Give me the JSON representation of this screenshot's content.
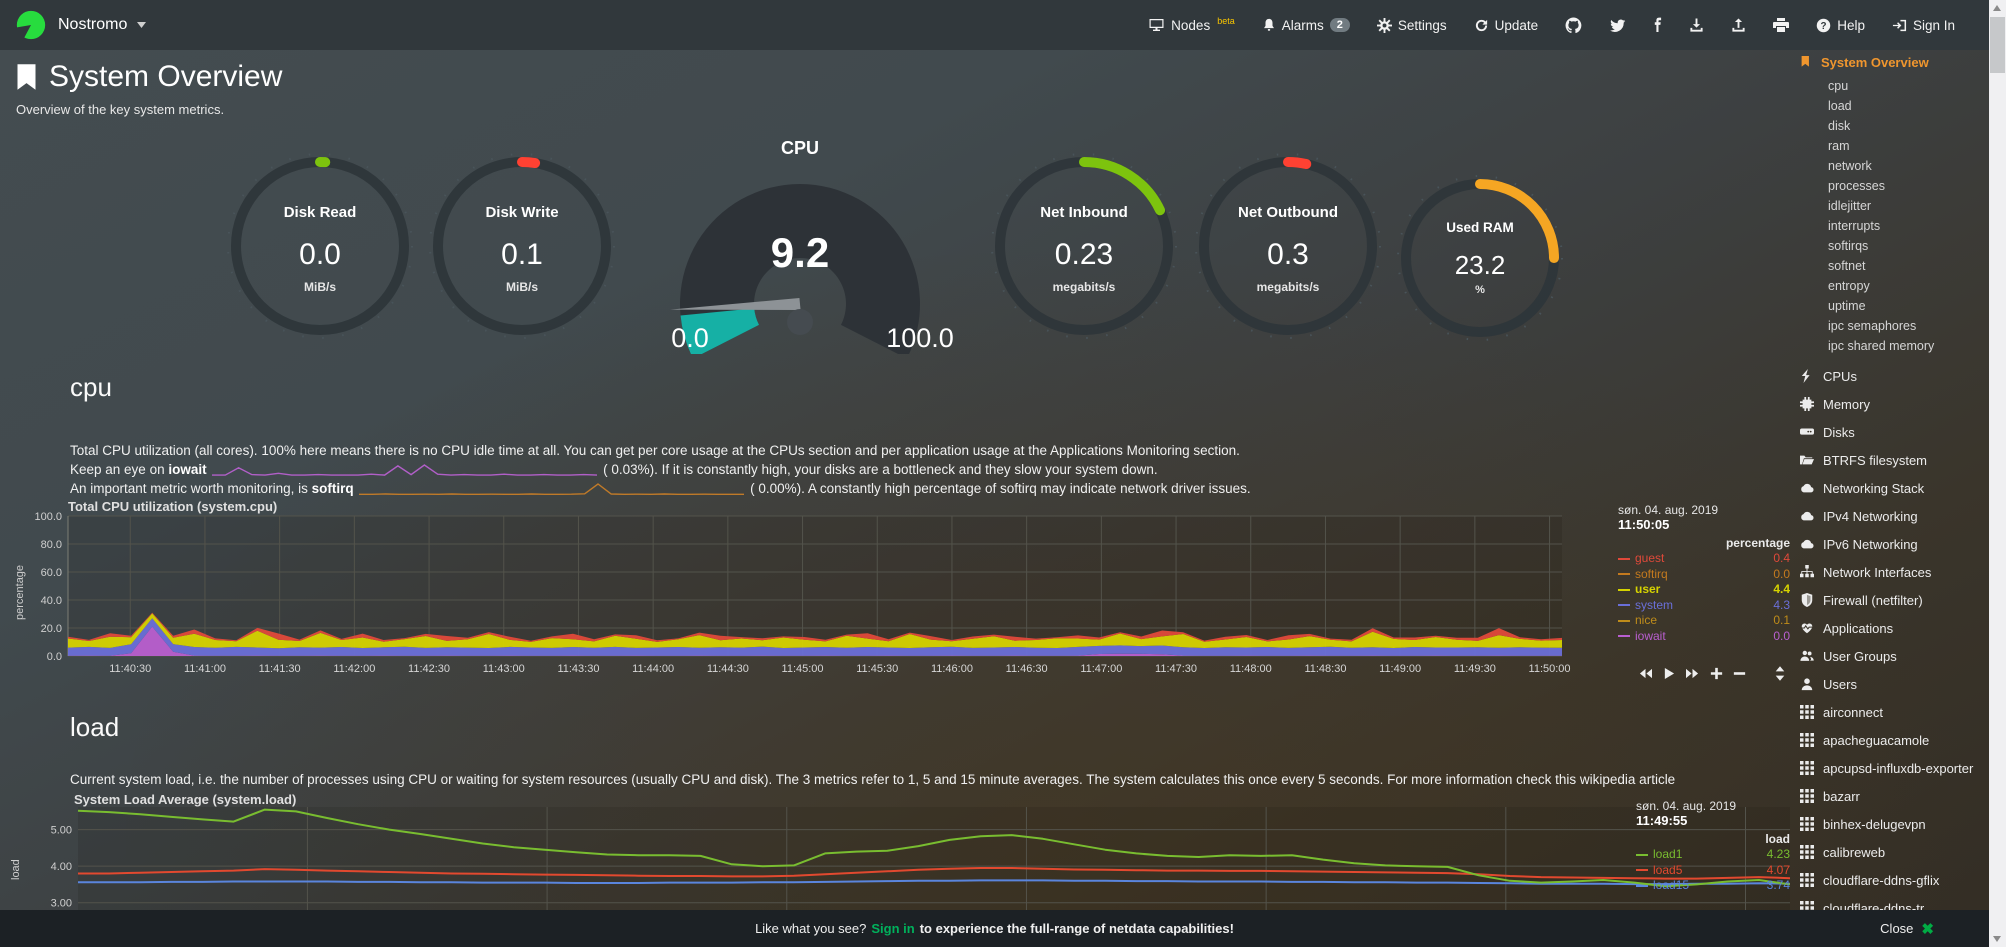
{
  "brand": {
    "name": "Nostromo"
  },
  "nav": {
    "nodes": {
      "label": "Nodes",
      "beta": "beta"
    },
    "alarms": {
      "label": "Alarms",
      "badge": "2"
    },
    "settings": {
      "label": "Settings"
    },
    "update": {
      "label": "Update"
    },
    "help": {
      "label": "Help"
    },
    "signin": {
      "label": "Sign In"
    }
  },
  "page": {
    "title": "System Overview",
    "subtitle": "Overview of the key system metrics."
  },
  "gauges": {
    "disk_read": {
      "label": "Disk Read",
      "value": "0.0",
      "unit": "MiB/s",
      "percent": 1,
      "color": "#7dc30e"
    },
    "disk_write": {
      "label": "Disk Write",
      "value": "0.1",
      "unit": "MiB/s",
      "percent": 2.5,
      "color": "#ff4132"
    },
    "cpu": {
      "title": "CPU",
      "value": "9.2",
      "min": "0.0",
      "max": "100.0",
      "unit": "%",
      "percent": 9.2,
      "color": "#16b0a5"
    },
    "net_in": {
      "label": "Net Inbound",
      "value": "0.23",
      "unit": "megabits/s",
      "percent": 18,
      "color": "#7dc30e"
    },
    "net_out": {
      "label": "Net Outbound",
      "value": "0.3",
      "unit": "megabits/s",
      "percent": 3.5,
      "color": "#ff4132"
    },
    "ram": {
      "label": "Used RAM",
      "value": "23.2",
      "unit": "%",
      "percent": 25,
      "color": "#f5a623"
    }
  },
  "cpu_section": {
    "heading": "cpu",
    "p1": "Total CPU utilization (all cores). 100% here means there is no CPU idle time at all. You can get per core usage at the CPUs section and per application usage at the Applications Monitoring section.",
    "p2_prefix": "Keep an eye on ",
    "p2_term": "iowait",
    "p2_suffix": " (    0.03%). If it is constantly high, your disks are a bottleneck and they slow your system down.",
    "p3_prefix": "An important metric worth monitoring, is ",
    "p3_term": "softirq",
    "p3_suffix": " (    0.00%). A constantly high percentage of softirq may indicate network driver issues."
  },
  "load_section": {
    "heading": "load",
    "p1": "Current system load, i.e. the number of processes using CPU or waiting for system resources (usually CPU and disk). The 3 metrics refer to 1, 5 and 15 minute averages. The system calculates this once every 5 seconds. For more information check this wikipedia article"
  },
  "footer": {
    "pre": "Like what you see?",
    "link": "Sign in",
    "post": "to experience the full-range of netdata capabilities!",
    "close": "Close",
    "close_icon": "✖"
  },
  "sidebar": {
    "active": {
      "label": "System Overview",
      "icon": "bookmark-icon"
    },
    "subitems": [
      "cpu",
      "load",
      "disk",
      "ram",
      "network",
      "processes",
      "idlejitter",
      "interrupts",
      "softirqs",
      "softnet",
      "entropy",
      "uptime",
      "ipc semaphores",
      "ipc shared memory"
    ],
    "sections": [
      {
        "label": "CPUs",
        "icon": "bolt-icon"
      },
      {
        "label": "Memory",
        "icon": "memory-icon"
      },
      {
        "label": "Disks",
        "icon": "hdd-icon"
      },
      {
        "label": "BTRFS filesystem",
        "icon": "folder-open-icon"
      },
      {
        "label": "Networking Stack",
        "icon": "cloud-icon"
      },
      {
        "label": "IPv4 Networking",
        "icon": "cloud-icon"
      },
      {
        "label": "IPv6 Networking",
        "icon": "cloud-icon"
      },
      {
        "label": "Network Interfaces",
        "icon": "sitemap-icon"
      },
      {
        "label": "Firewall (netfilter)",
        "icon": "shield-icon"
      },
      {
        "label": "Applications",
        "icon": "heartbeat-icon"
      },
      {
        "label": "User Groups",
        "icon": "users-icon"
      },
      {
        "label": "Users",
        "icon": "user-icon"
      },
      {
        "label": "airconnect",
        "icon": "grid-icon"
      },
      {
        "label": "apacheguacamole",
        "icon": "grid-icon"
      },
      {
        "label": "apcupsd-influxdb-exporter",
        "icon": "grid-icon"
      },
      {
        "label": "bazarr",
        "icon": "grid-icon"
      },
      {
        "label": "binhex-delugevpn",
        "icon": "grid-icon"
      },
      {
        "label": "calibreweb",
        "icon": "grid-icon"
      },
      {
        "label": "cloudflare-ddns-gflix",
        "icon": "grid-icon"
      },
      {
        "label": "cloudflare-ddns-tr",
        "icon": "grid-icon"
      }
    ]
  },
  "chart_data": [
    {
      "type": "area",
      "title": "Total CPU utilization (system.cpu)",
      "ylabel": "percentage",
      "ylim": [
        0,
        100
      ],
      "yticks": [
        {
          "v": 100,
          "label": "100.0"
        },
        {
          "v": 80,
          "label": "80.0"
        },
        {
          "v": 60,
          "label": "60.0"
        },
        {
          "v": 40,
          "label": "40.0"
        },
        {
          "v": 20,
          "label": "20.0"
        },
        {
          "v": 0,
          "label": "0.0"
        }
      ],
      "xticks": [
        "11:40:30",
        "11:41:00",
        "11:41:30",
        "11:42:00",
        "11:42:30",
        "11:43:00",
        "11:43:30",
        "11:44:00",
        "11:44:30",
        "11:45:00",
        "11:45:30",
        "11:46:00",
        "11:46:30",
        "11:47:00",
        "11:47:30",
        "11:48:00",
        "11:48:30",
        "11:49:00",
        "11:49:30",
        "11:50:00"
      ],
      "legend_date": "søn. 04. aug. 2019",
      "legend_time": "11:50:05",
      "legend_header": "percentage",
      "stack_order": [
        "iowait",
        "system",
        "user",
        "guest"
      ],
      "series": [
        {
          "name": "guest",
          "color": "#e0493a",
          "value_label": "0.4",
          "emphasis": false,
          "values": [
            1.2,
            0.8,
            2.5,
            1.0,
            0.6,
            1.5,
            3.0,
            1.2,
            0.8,
            2.0,
            4.5,
            1.0,
            1.8,
            0.8,
            2.8,
            1.2,
            0.7,
            1.5,
            3.5,
            1.0,
            1.4,
            2.2,
            0.8,
            1.2,
            4.0,
            1.5,
            0.9,
            2.5,
            1.1,
            0.7,
            1.8,
            3.2,
            1.0,
            1.5,
            0.8,
            2.0,
            1.2,
            0.9,
            3.8,
            1.4,
            1.0,
            2.5,
            0.8,
            1.6,
            1.2,
            2.8,
            1.0,
            0.7,
            2.2,
            1.5,
            0.9,
            1.8,
            4.2,
            1.2,
            0.8,
            2.0,
            1.4,
            1.0,
            3.0,
            1.6,
            0.8,
            1.2,
            2.5,
            1.0,
            1.8,
            0.9,
            1.4,
            2.2,
            5.0,
            1.2,
            0.9,
            1.5
          ]
        },
        {
          "name": "softirq",
          "color": "#c47a1e",
          "value_label": "0.0",
          "emphasis": false,
          "values": [
            0.05,
            0.05,
            0.05,
            0.05,
            0.05,
            0.05,
            0.05,
            0.05,
            0.05,
            0.05,
            0.05,
            0.05,
            0.05,
            0.05,
            0.05,
            0.05,
            0.05,
            0.05,
            0.05,
            0.05,
            0.05,
            0.05,
            0.05,
            0.05,
            0.05,
            0.05,
            0.05,
            0.05,
            0.05,
            0.05,
            0.05,
            0.05,
            0.05,
            0.05,
            0.05,
            0.05,
            0.05,
            0.05,
            0.05,
            0.05,
            0.05,
            0.05,
            0.05,
            0.05,
            0.05,
            0.05,
            0.05,
            0.05,
            0.05,
            0.05,
            0.05,
            0.05,
            0.05,
            0.05,
            0.05,
            0.05,
            0.05,
            0.05,
            0.05,
            0.05,
            0.05,
            0.05,
            0.05,
            0.05,
            0.05,
            0.05,
            0.05,
            0.05,
            0.05,
            0.05,
            0.05,
            0.05
          ]
        },
        {
          "name": "user",
          "color": "#d6d300",
          "value_label": "4.4",
          "emphasis": true,
          "values": [
            6.5,
            4.2,
            8.0,
            5.0,
            3.5,
            4.5,
            9.5,
            5.5,
            4.0,
            12.0,
            6.0,
            4.5,
            10.5,
            5.0,
            7.5,
            4.0,
            5.5,
            8.5,
            4.5,
            6.0,
            10.0,
            5.0,
            4.0,
            7.0,
            5.5,
            4.5,
            8.0,
            6.5,
            4.0,
            5.5,
            9.0,
            5.0,
            6.5,
            4.5,
            7.5,
            5.5,
            4.0,
            8.5,
            6.0,
            4.5,
            10.0,
            5.5,
            4.0,
            6.5,
            8.0,
            4.5,
            5.5,
            7.0,
            6.0,
            4.5,
            8.5,
            5.0,
            6.5,
            9.5,
            4.5,
            5.5,
            7.5,
            4.0,
            6.0,
            8.0,
            5.0,
            4.5,
            11.0,
            6.5,
            5.0,
            7.5,
            5.5,
            4.5,
            9.0,
            6.0,
            5.0,
            5.5
          ]
        },
        {
          "name": "system",
          "color": "#6a6fd8",
          "value_label": "4.3",
          "emphasis": false,
          "values": [
            5.8,
            6.2,
            5.6,
            6.4,
            5.9,
            5.5,
            6.1,
            5.7,
            6.3,
            5.8,
            5.4,
            6.0,
            5.7,
            6.2,
            5.5,
            5.9,
            6.4,
            5.6,
            6.0,
            5.8,
            5.5,
            6.2,
            5.9,
            5.6,
            6.1,
            5.7,
            6.3,
            5.5,
            5.9,
            6.2,
            5.6,
            6.0,
            5.8,
            6.4,
            5.5,
            5.9,
            6.1,
            5.7,
            6.2,
            5.8,
            5.5,
            6.0,
            6.3,
            5.6,
            5.9,
            6.1,
            5.7,
            5.5,
            6.2,
            5.8,
            6.0,
            5.6,
            6.3,
            5.9,
            5.5,
            6.1,
            5.8,
            6.2,
            5.6,
            5.9,
            6.4,
            5.7,
            6.0,
            5.5,
            6.2,
            5.8,
            5.9,
            6.1,
            5.6,
            6.0,
            5.8,
            5.7
          ]
        },
        {
          "name": "nice",
          "color": "#bf8c1a",
          "value_label": "0.1",
          "emphasis": false,
          "values": [
            0.1,
            0.1,
            0.1,
            0.1,
            0.1,
            0.1,
            0.1,
            0.1,
            0.1,
            0.1,
            0.1,
            0.1,
            0.1,
            0.1,
            0.1,
            0.1,
            0.1,
            0.1,
            0.1,
            0.1,
            0.1,
            0.1,
            0.1,
            0.1,
            0.1,
            0.1,
            0.1,
            0.1,
            0.1,
            0.1,
            0.1,
            0.1,
            0.1,
            0.1,
            0.1,
            0.1,
            0.1,
            0.1,
            0.1,
            0.1,
            0.1,
            0.1,
            0.1,
            0.1,
            0.1,
            0.1,
            0.1,
            0.1,
            0.1,
            0.1,
            0.1,
            0.1,
            0.1,
            0.1,
            0.1,
            0.1,
            0.1,
            0.1,
            0.1,
            0.1,
            0.1,
            0.1,
            0.1,
            0.1,
            0.1,
            0.1,
            0.1,
            0.1,
            0.1,
            0.1,
            0.1,
            0.1
          ]
        },
        {
          "name": "iowait",
          "color": "#b95fd0",
          "value_label": "0.0",
          "emphasis": false,
          "values": [
            0.2,
            0.3,
            0.2,
            2.0,
            21.0,
            3.0,
            0.3,
            0.2,
            0.2,
            0.3,
            0.2,
            0.2,
            0.3,
            0.2,
            0.2,
            0.3,
            0.2,
            0.2,
            0.3,
            0.2,
            0.2,
            0.3,
            0.2,
            0.2,
            0.3,
            0.2,
            0.2,
            0.3,
            0.2,
            0.2,
            0.3,
            0.2,
            0.2,
            0.3,
            0.2,
            0.2,
            0.3,
            0.2,
            0.2,
            0.3,
            0.2,
            0.2,
            0.3,
            0.2,
            0.2,
            0.3,
            0.2,
            0.2,
            0.3,
            1.4,
            1.6,
            1.5,
            1.2,
            0.3,
            0.2,
            0.2,
            0.3,
            0.2,
            0.2,
            0.3,
            0.2,
            0.2,
            0.3,
            0.2,
            0.2,
            0.3,
            0.2,
            0.2,
            0.3,
            0.2,
            0.2,
            0.2
          ]
        }
      ]
    },
    {
      "type": "line",
      "title": "System Load Average (system.load)",
      "ylabel": "load",
      "ylim": [
        2.8,
        5.62
      ],
      "yticks": [
        {
          "v": 5,
          "label": "5.00"
        },
        {
          "v": 4,
          "label": "4.00"
        },
        {
          "v": 3,
          "label": "3.00"
        }
      ],
      "legend_date": "søn. 04. aug. 2019",
      "legend_time": "11:49:55",
      "legend_header": "load",
      "series": [
        {
          "name": "load1",
          "color": "#79bd30",
          "value_label": "4.23",
          "emphasis": false,
          "values": [
            5.52,
            5.48,
            5.42,
            5.35,
            5.28,
            5.22,
            5.55,
            5.5,
            5.32,
            5.15,
            5.0,
            4.88,
            4.75,
            4.62,
            4.52,
            4.45,
            4.38,
            4.32,
            4.3,
            4.3,
            4.28,
            4.05,
            4.0,
            4.02,
            4.35,
            4.4,
            4.42,
            4.55,
            4.72,
            4.82,
            4.85,
            4.75,
            4.6,
            4.45,
            4.35,
            4.28,
            4.25,
            4.3,
            4.28,
            4.3,
            4.18,
            4.08,
            4.02,
            4.0,
            3.98,
            3.75,
            3.6,
            3.55,
            3.58,
            3.62,
            3.55,
            3.45,
            3.5,
            3.58,
            3.62,
            3.5
          ]
        },
        {
          "name": "load5",
          "color": "#e2492f",
          "value_label": "4.07",
          "emphasis": false,
          "values": [
            3.8,
            3.8,
            3.82,
            3.84,
            3.86,
            3.88,
            3.92,
            3.9,
            3.88,
            3.86,
            3.84,
            3.82,
            3.8,
            3.79,
            3.78,
            3.77,
            3.76,
            3.75,
            3.74,
            3.73,
            3.73,
            3.72,
            3.72,
            3.74,
            3.78,
            3.82,
            3.86,
            3.9,
            3.93,
            3.95,
            3.95,
            3.93,
            3.91,
            3.9,
            3.89,
            3.88,
            3.88,
            3.87,
            3.87,
            3.86,
            3.85,
            3.84,
            3.83,
            3.82,
            3.81,
            3.78,
            3.73,
            3.7,
            3.69,
            3.68,
            3.67,
            3.66,
            3.66,
            3.68,
            3.7,
            3.67
          ]
        },
        {
          "name": "load15",
          "color": "#5a85dd",
          "value_label": "3.74",
          "emphasis": false,
          "values": [
            3.56,
            3.56,
            3.56,
            3.57,
            3.57,
            3.58,
            3.58,
            3.58,
            3.58,
            3.57,
            3.57,
            3.56,
            3.56,
            3.55,
            3.55,
            3.55,
            3.54,
            3.54,
            3.54,
            3.55,
            3.55,
            3.55,
            3.56,
            3.56,
            3.57,
            3.58,
            3.59,
            3.6,
            3.6,
            3.61,
            3.61,
            3.61,
            3.6,
            3.6,
            3.59,
            3.59,
            3.58,
            3.58,
            3.58,
            3.57,
            3.57,
            3.56,
            3.56,
            3.55,
            3.55,
            3.54,
            3.53,
            3.52,
            3.52,
            3.52,
            3.51,
            3.51,
            3.52,
            3.52,
            3.53,
            3.52
          ]
        }
      ]
    },
    {
      "type": "line",
      "name": "iowait-sparkline",
      "color": "#b15fc8",
      "values": [
        0.2,
        0.2,
        1.8,
        0.3,
        0.2,
        0.6,
        0.2,
        0.2,
        0.3,
        0.2,
        0.2,
        0.2,
        0.4,
        0.2,
        2.2,
        0.3,
        2.4,
        0.4,
        0.2,
        0.3,
        0.2,
        0.2,
        0.4,
        0.2,
        0.2,
        0.3,
        0.2,
        0.2,
        0.3,
        0.2
      ]
    },
    {
      "type": "line",
      "name": "softirq-sparkline",
      "color": "#c07a28",
      "values": [
        0.1,
        0.1,
        0.15,
        0.1,
        0.1,
        0.12,
        0.1,
        0.15,
        0.1,
        0.1,
        0.12,
        0.1,
        0.1,
        0.15,
        0.1,
        0.1,
        0.12,
        0.18,
        1.6,
        0.15,
        0.1,
        0.12,
        0.1,
        0.15,
        0.1,
        0.1,
        0.12,
        0.1,
        0.1,
        0.1
      ]
    }
  ]
}
